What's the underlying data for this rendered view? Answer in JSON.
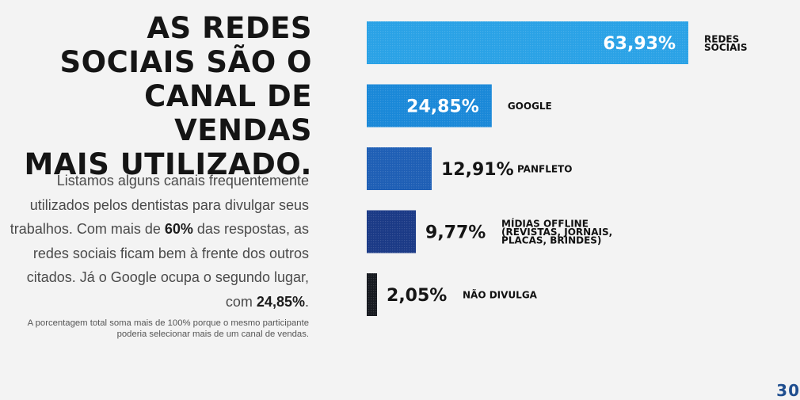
{
  "heading": {
    "lines": [
      "AS REDES",
      "SOCIAIS SÃO O",
      "CANAL DE VENDAS",
      "MAIS UTILIZADO."
    ]
  },
  "description": {
    "part1": "Listamos alguns canais frequentemente utilizados pelos dentistas para divulgar seus trabalhos. Com mais de ",
    "bold1": "60%",
    "part2": " das respostas, as redes sociais ficam bem à frente dos outros citados. Já o Google ocupa o segundo lugar, com ",
    "bold2": "24,85%",
    "part3": "."
  },
  "footnote": "A porcentagem total soma mais de 100% porque o mesmo participante poderia selecionar mais de um canal de vendas.",
  "page_number": "30",
  "chart_data": {
    "type": "bar",
    "orientation": "horizontal",
    "categories": [
      [
        "REDES",
        "SOCIAIS"
      ],
      [
        "GOOGLE"
      ],
      [
        "PANFLETO"
      ],
      [
        "MÍDIAS OFFLINE",
        "(REVISTAS, JORNAIS,",
        "PLACAS, BRINDES)"
      ],
      [
        "NÃO DIVULGA"
      ]
    ],
    "values": [
      63.93,
      24.85,
      12.91,
      9.77,
      2.05
    ],
    "value_labels": [
      "63,93%",
      "24,85%",
      "12,91%",
      "9,77%",
      "2,05%"
    ],
    "colors": [
      "#2aa2e6",
      "#1a88d8",
      "#1f5fb5",
      "#1b3a86",
      "#171a20"
    ],
    "xlim": [
      0,
      63.93
    ],
    "grid": false,
    "legend": "none"
  }
}
